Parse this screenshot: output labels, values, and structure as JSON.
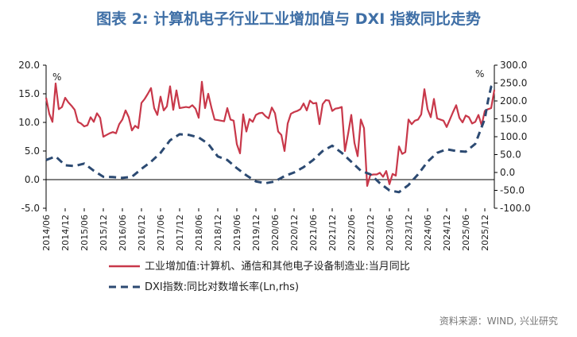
{
  "title": "图表 2: 计算机电子行业工业增加值与 DXI 指数同比走势",
  "source": "资料来源：WIND, 兴业研究",
  "colors": {
    "title": "#3f6fa6",
    "series1": "#c8384a",
    "series2": "#2c4a72",
    "axis": "#000000"
  },
  "chart_data": {
    "type": "line",
    "left_axis": {
      "range": [
        -5,
        20
      ],
      "ticks": [
        "-5.0",
        "0.0",
        "5.0",
        "10.0",
        "15.0",
        "20.0"
      ],
      "unit_label": "%"
    },
    "right_axis": {
      "range": [
        -100,
        300
      ],
      "ticks": [
        "-100.0",
        "-50.0",
        "0.0",
        "50.0",
        "100.0",
        "150.0",
        "200.0",
        "250.0",
        "300.0"
      ],
      "unit_label": "%"
    },
    "x_start": "2014-06",
    "x_end": "2026-03",
    "x_ticks": [
      "2014/06",
      "2014/12",
      "2015/06",
      "2015/12",
      "2016/06",
      "2016/12",
      "2017/06",
      "2017/12",
      "2018/06",
      "2018/12",
      "2019/06",
      "2019/12",
      "2020/06",
      "2020/12",
      "2021/06",
      "2021/12",
      "2022/06",
      "2022/12",
      "2023/06",
      "2023/12",
      "2024/06",
      "2024/12",
      "2025/06",
      "2025/12"
    ],
    "grid": false,
    "legend_position": "bottom",
    "series": [
      {
        "name": "工业增加值:计算机、通信和其他电子设备制造业:当月同比",
        "axis": "left",
        "style": "solid",
        "points": [
          [
            "2014-06",
            14.3
          ],
          [
            "2014-07",
            11.5
          ],
          [
            "2014-08",
            10.1
          ],
          [
            "2014-09",
            16.8
          ],
          [
            "2014-10",
            12.3
          ],
          [
            "2014-11",
            12.7
          ],
          [
            "2014-12",
            14.3
          ],
          [
            "2015-01",
            13.5
          ],
          [
            "2015-02",
            12.9
          ],
          [
            "2015-03",
            12.2
          ],
          [
            "2015-04",
            10.1
          ],
          [
            "2015-05",
            9.8
          ],
          [
            "2015-06",
            9.3
          ],
          [
            "2015-07",
            9.5
          ],
          [
            "2015-08",
            10.9
          ],
          [
            "2015-09",
            10.1
          ],
          [
            "2015-10",
            11.6
          ],
          [
            "2015-11",
            10.8
          ],
          [
            "2015-12",
            7.5
          ],
          [
            "2016-01",
            7.8
          ],
          [
            "2016-02",
            8.1
          ],
          [
            "2016-03",
            8.3
          ],
          [
            "2016-04",
            8.1
          ],
          [
            "2016-05",
            9.7
          ],
          [
            "2016-06",
            10.5
          ],
          [
            "2016-07",
            12.1
          ],
          [
            "2016-08",
            10.9
          ],
          [
            "2016-09",
            8.6
          ],
          [
            "2016-10",
            9.4
          ],
          [
            "2016-11",
            9.0
          ],
          [
            "2016-12",
            13.4
          ],
          [
            "2017-01",
            14.1
          ],
          [
            "2017-02",
            15.0
          ],
          [
            "2017-03",
            16.0
          ],
          [
            "2017-04",
            12.5
          ],
          [
            "2017-05",
            11.3
          ],
          [
            "2017-06",
            14.5
          ],
          [
            "2017-07",
            12.1
          ],
          [
            "2017-08",
            12.8
          ],
          [
            "2017-09",
            16.3
          ],
          [
            "2017-10",
            12.2
          ],
          [
            "2017-11",
            15.6
          ],
          [
            "2017-12",
            12.5
          ],
          [
            "2017-12",
            12.5
          ],
          [
            "2018-01",
            12.6
          ],
          [
            "2018-02",
            12.7
          ],
          [
            "2018-03",
            12.6
          ],
          [
            "2018-04",
            13.0
          ],
          [
            "2018-05",
            12.4
          ],
          [
            "2018-06",
            10.8
          ],
          [
            "2018-07",
            17.1
          ],
          [
            "2018-08",
            12.5
          ],
          [
            "2018-09",
            15.0
          ],
          [
            "2018-10",
            12.6
          ],
          [
            "2018-11",
            10.5
          ],
          [
            "2018-12",
            10.4
          ],
          [
            "2019-01",
            10.3
          ],
          [
            "2019-02",
            10.2
          ],
          [
            "2019-03",
            12.5
          ],
          [
            "2019-04",
            10.5
          ],
          [
            "2019-05",
            10.3
          ],
          [
            "2019-06",
            6.2
          ],
          [
            "2019-07",
            4.6
          ],
          [
            "2019-08",
            11.4
          ],
          [
            "2019-09",
            8.4
          ],
          [
            "2019-10",
            10.6
          ],
          [
            "2019-11",
            10.1
          ],
          [
            "2019-12",
            11.3
          ],
          [
            "2020-01",
            11.6
          ],
          [
            "2020-02",
            11.7
          ],
          [
            "2020-03",
            11.1
          ],
          [
            "2020-04",
            10.7
          ],
          [
            "2020-05",
            12.6
          ],
          [
            "2020-06",
            11.6
          ],
          [
            "2020-07",
            8.4
          ],
          [
            "2020-08",
            7.8
          ],
          [
            "2020-09",
            5.0
          ],
          [
            "2020-10",
            9.8
          ],
          [
            "2020-11",
            11.5
          ],
          [
            "2020-12",
            11.8
          ],
          [
            "2021-01",
            12.0
          ],
          [
            "2021-02",
            12.3
          ],
          [
            "2021-03",
            13.3
          ],
          [
            "2021-04",
            12.1
          ],
          [
            "2021-05",
            13.8
          ],
          [
            "2021-06",
            13.3
          ],
          [
            "2021-07",
            13.4
          ],
          [
            "2021-08",
            9.7
          ],
          [
            "2021-09",
            13.2
          ],
          [
            "2021-10",
            13.9
          ],
          [
            "2021-11",
            13.8
          ],
          [
            "2021-12",
            12.0
          ],
          [
            "2022-01",
            12.4
          ],
          [
            "2022-02",
            12.5
          ],
          [
            "2022-03",
            12.7
          ],
          [
            "2022-04",
            5.0
          ],
          [
            "2022-05",
            8.0
          ],
          [
            "2022-06",
            11.3
          ],
          [
            "2022-07",
            6.4
          ],
          [
            "2022-08",
            4.1
          ],
          [
            "2022-09",
            10.5
          ],
          [
            "2022-10",
            9.0
          ],
          [
            "2022-11",
            -1.1
          ],
          [
            "2022-12",
            0.8
          ],
          [
            "2023-01",
            0.9
          ],
          [
            "2023-02",
            0.9
          ],
          [
            "2023-03",
            1.2
          ],
          [
            "2023-04",
            0.5
          ],
          [
            "2023-05",
            1.5
          ],
          [
            "2023-06",
            -0.8
          ],
          [
            "2023-07",
            1.0
          ],
          [
            "2023-08",
            0.7
          ],
          [
            "2023-09",
            5.8
          ],
          [
            "2023-10",
            4.5
          ],
          [
            "2023-11",
            4.8
          ],
          [
            "2023-12",
            10.5
          ],
          [
            "2024-01",
            9.7
          ],
          [
            "2024-02",
            10.3
          ],
          [
            "2024-03",
            10.5
          ],
          [
            "2024-04",
            11.4
          ],
          [
            "2024-05",
            15.8
          ],
          [
            "2024-06",
            12.3
          ],
          [
            "2024-07",
            10.9
          ],
          [
            "2024-08",
            14.1
          ],
          [
            "2024-09",
            10.7
          ],
          [
            "2024-10",
            10.5
          ],
          [
            "2024-11",
            10.3
          ],
          [
            "2024-12",
            9.2
          ],
          [
            "2025-01",
            10.5
          ],
          [
            "2025-02",
            11.8
          ],
          [
            "2025-03",
            13.0
          ],
          [
            "2025-04",
            10.8
          ],
          [
            "2025-05",
            10.0
          ],
          [
            "2025-06",
            11.2
          ],
          [
            "2025-07",
            10.9
          ],
          [
            "2025-08",
            9.8
          ],
          [
            "2025-09",
            10.1
          ],
          [
            "2025-10",
            11.3
          ],
          [
            "2025-11",
            9.5
          ],
          [
            "2025-12",
            12.0
          ],
          [
            "2026-01",
            12.3
          ],
          [
            "2026-02",
            12.5
          ],
          [
            "2026-03",
            15.7
          ]
        ]
      },
      {
        "name": "DXI指数:同比对数增长率(Ln,rhs)",
        "axis": "right",
        "style": "dashed",
        "points": [
          [
            "2014-06",
            35
          ],
          [
            "2014-09",
            45
          ],
          [
            "2014-12",
            20
          ],
          [
            "2015-03",
            18
          ],
          [
            "2015-06",
            25
          ],
          [
            "2015-09",
            5
          ],
          [
            "2015-12",
            -12
          ],
          [
            "2016-03",
            -13
          ],
          [
            "2016-06",
            -15
          ],
          [
            "2016-09",
            -12
          ],
          [
            "2016-12",
            10
          ],
          [
            "2017-03",
            30
          ],
          [
            "2017-06",
            55
          ],
          [
            "2017-09",
            90
          ],
          [
            "2017-12",
            107
          ],
          [
            "2018-03",
            105
          ],
          [
            "2018-06",
            98
          ],
          [
            "2018-09",
            80
          ],
          [
            "2018-12",
            45
          ],
          [
            "2019-03",
            35
          ],
          [
            "2019-06",
            12
          ],
          [
            "2019-09",
            -8
          ],
          [
            "2019-12",
            -25
          ],
          [
            "2020-03",
            -30
          ],
          [
            "2020-06",
            -25
          ],
          [
            "2020-09",
            -10
          ],
          [
            "2020-12",
            0
          ],
          [
            "2021-03",
            15
          ],
          [
            "2021-06",
            35
          ],
          [
            "2021-09",
            60
          ],
          [
            "2021-12",
            75
          ],
          [
            "2022-03",
            55
          ],
          [
            "2022-06",
            30
          ],
          [
            "2022-09",
            5
          ],
          [
            "2022-12",
            -5
          ],
          [
            "2023-03",
            -30
          ],
          [
            "2023-06",
            -50
          ],
          [
            "2023-09",
            -55
          ],
          [
            "2023-12",
            -35
          ],
          [
            "2024-03",
            -5
          ],
          [
            "2024-06",
            30
          ],
          [
            "2024-09",
            55
          ],
          [
            "2024-12",
            65
          ],
          [
            "2025-03",
            60
          ],
          [
            "2025-06",
            58
          ],
          [
            "2025-09",
            80
          ],
          [
            "2025-12",
            150
          ],
          [
            "2026-01",
            200
          ],
          [
            "2026-02",
            240
          ],
          [
            "2026-03",
            250
          ]
        ]
      }
    ]
  }
}
